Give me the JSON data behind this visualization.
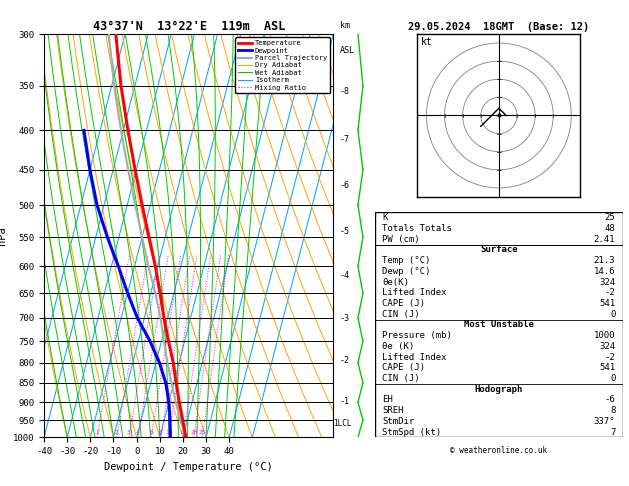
{
  "title_left": "43°37'N  13°22'E  119m  ASL",
  "title_right": "29.05.2024  18GMT  (Base: 12)",
  "xlabel": "Dewpoint / Temperature (°C)",
  "ylabel_left": "hPa",
  "ylabel_right_top": "km",
  "ylabel_right_bottom": "ASL",
  "pressure_levels": [
    300,
    350,
    400,
    450,
    500,
    550,
    600,
    650,
    700,
    750,
    800,
    850,
    900,
    950,
    1000
  ],
  "temp_ticks": [
    -40,
    -30,
    -20,
    -10,
    0,
    10,
    20,
    30,
    40
  ],
  "background_color": "#ffffff",
  "sounding_temp_pressure": [
    1000,
    950,
    900,
    850,
    800,
    750,
    700,
    650,
    600,
    550,
    500,
    450,
    400,
    350,
    300
  ],
  "sounding_temp_t": [
    21.3,
    18.0,
    14.5,
    11.0,
    7.5,
    3.0,
    -1.5,
    -6.0,
    -11.0,
    -17.0,
    -23.5,
    -30.5,
    -38.0,
    -46.0,
    -54.0
  ],
  "sounding_dewp_pressure": [
    1000,
    950,
    900,
    850,
    800,
    750,
    700,
    650,
    600,
    550,
    500,
    450,
    400
  ],
  "sounding_dewp_t": [
    14.6,
    12.5,
    10.0,
    6.5,
    1.5,
    -5.0,
    -13.0,
    -20.0,
    -27.0,
    -35.0,
    -43.0,
    -50.0,
    -57.0
  ],
  "parcel_pressure": [
    1000,
    950,
    900,
    850,
    800,
    750,
    700,
    650,
    600,
    550,
    500,
    450,
    400,
    350,
    300
  ],
  "parcel_t": [
    21.3,
    17.0,
    13.0,
    9.0,
    5.0,
    1.0,
    -3.0,
    -8.0,
    -14.0,
    -20.0,
    -26.5,
    -33.5,
    -41.0,
    -49.0,
    -57.0
  ],
  "temp_color": "#ff0000",
  "dewp_color": "#0000ff",
  "parcel_color": "#aaaaaa",
  "dry_adiabat_color": "#ffa500",
  "wet_adiabat_color": "#00cc00",
  "isotherm_color": "#00aaff",
  "mixing_ratio_color": "#ff00ff",
  "km_pressures": [
    899,
    795,
    701,
    617,
    541,
    472,
    411,
    356
  ],
  "km_labels": [
    "1",
    "2",
    "3",
    "4",
    "5",
    "6",
    "7",
    "8"
  ],
  "lcl_pressure": 960,
  "wind_profile_temps": [
    21.3,
    16.0,
    11.0,
    6.0,
    1.0,
    -4.0,
    -9.0,
    -14.0,
    -19.0
  ],
  "wind_profile_pressures": [
    1000,
    950,
    900,
    850,
    800,
    750,
    700,
    650,
    600
  ],
  "legend_entries": [
    {
      "label": "Temperature",
      "color": "#ff0000",
      "lw": 2.0,
      "ls": "-"
    },
    {
      "label": "Dewpoint",
      "color": "#0000ff",
      "lw": 2.0,
      "ls": "-"
    },
    {
      "label": "Parcel Trajectory",
      "color": "#aaaaaa",
      "lw": 1.5,
      "ls": "-"
    },
    {
      "label": "Dry Adiabat",
      "color": "#ffa500",
      "lw": 0.8,
      "ls": "-"
    },
    {
      "label": "Wet Adiabat",
      "color": "#00cc00",
      "lw": 0.8,
      "ls": "-"
    },
    {
      "label": "Isotherm",
      "color": "#00aaff",
      "lw": 0.8,
      "ls": "-"
    },
    {
      "label": "Mixing Ratio",
      "color": "#ff00ff",
      "lw": 0.8,
      "ls": ":"
    }
  ],
  "table_rows": [
    [
      "K",
      "25",
      false
    ],
    [
      "Totals Totals",
      "48",
      false
    ],
    [
      "PW (cm)",
      "2.41",
      false
    ],
    [
      "Surface",
      "",
      true
    ],
    [
      "Temp (°C)",
      "21.3",
      false
    ],
    [
      "Dewp (°C)",
      "14.6",
      false
    ],
    [
      "θe(K)",
      "324",
      false
    ],
    [
      "Lifted Index",
      "-2",
      false
    ],
    [
      "CAPE (J)",
      "541",
      false
    ],
    [
      "CIN (J)",
      "0",
      false
    ],
    [
      "Most Unstable",
      "",
      true
    ],
    [
      "Pressure (mb)",
      "1000",
      false
    ],
    [
      "θe (K)",
      "324",
      false
    ],
    [
      "Lifted Index",
      "-2",
      false
    ],
    [
      "CAPE (J)",
      "541",
      false
    ],
    [
      "CIN (J)",
      "0",
      false
    ],
    [
      "Hodograph",
      "",
      true
    ],
    [
      "EH",
      "-6",
      false
    ],
    [
      "SREH",
      "8",
      false
    ],
    [
      "StmDir",
      "337°",
      false
    ],
    [
      "StmSpd (kt)",
      "7",
      false
    ]
  ],
  "footer": "© weatheronline.co.uk"
}
